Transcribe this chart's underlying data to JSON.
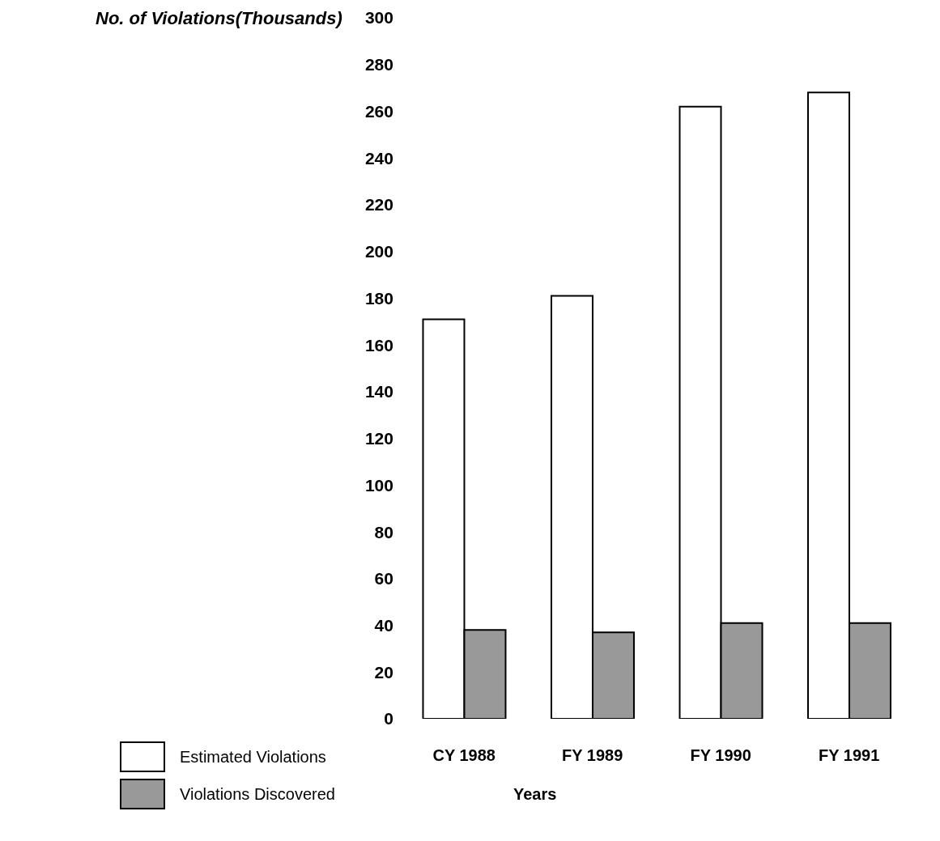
{
  "chart_data": {
    "type": "bar",
    "ylabel": "No. of Violations(Thousands)",
    "xlabel": "Years",
    "categories": [
      "CY 1988",
      "FY 1989",
      "FY 1990",
      "FY 1991"
    ],
    "series": [
      {
        "name": "Estimated Violations",
        "color": "#ffffff",
        "values": [
          171,
          181,
          262,
          268
        ]
      },
      {
        "name": "Violations Discovered",
        "color": "#999999",
        "values": [
          38,
          37,
          41,
          41
        ]
      }
    ],
    "ylim": [
      0,
      300
    ],
    "yticks": [
      0,
      20,
      40,
      60,
      80,
      100,
      120,
      140,
      160,
      180,
      200,
      220,
      240,
      260,
      280,
      300
    ],
    "grid": false,
    "legend": "bottom left"
  }
}
